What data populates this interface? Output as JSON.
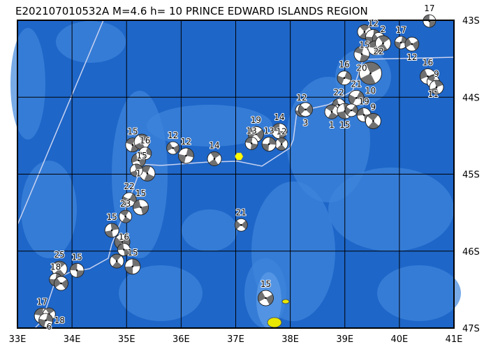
{
  "title": "E202107010532A  M=4.6  h= 10  PRINCE EDWARD ISLANDS REGION",
  "extent": {
    "lon": [
      33,
      41
    ],
    "lat": [
      -47,
      -43
    ]
  },
  "lon_ticks": [
    {
      "v": 33,
      "label": "33E"
    },
    {
      "v": 34,
      "label": "34E"
    },
    {
      "v": 35,
      "label": "35E"
    },
    {
      "v": 36,
      "label": "36E"
    },
    {
      "v": 37,
      "label": "37E"
    },
    {
      "v": 38,
      "label": "38E"
    },
    {
      "v": 39,
      "label": "39E"
    },
    {
      "v": 40,
      "label": "40E"
    },
    {
      "v": 41,
      "label": "41E"
    }
  ],
  "lat_ticks": [
    {
      "v": -43,
      "label": "43S"
    },
    {
      "v": -44,
      "label": "44S"
    },
    {
      "v": -45,
      "label": "45S"
    },
    {
      "v": -46,
      "label": "46S"
    },
    {
      "v": -47,
      "label": "47S"
    }
  ],
  "colors": {
    "ocean": "#1e66c8",
    "shallow": "#3f86dc",
    "ridge": "#c8d2f0",
    "land": "#e8e800",
    "beachball_dark": "#707070",
    "epicenter": "#ffff00",
    "grid": "#000000"
  },
  "epicenter": {
    "lon": 37.06,
    "lat": -44.77
  },
  "events": [
    {
      "lon": 40.55,
      "lat": -43.01,
      "depth": "17"
    },
    {
      "lon": 39.36,
      "lat": -43.15,
      "depth": "15"
    },
    {
      "lon": 39.52,
      "lat": -43.22,
      "depth": "12"
    },
    {
      "lon": 39.62,
      "lat": -43.24,
      "depth": "22"
    },
    {
      "lon": 39.55,
      "lat": -43.36,
      "depth": ""
    },
    {
      "lon": 39.7,
      "lat": -43.3,
      "depth": "2"
    },
    {
      "lon": 40.03,
      "lat": -43.29,
      "depth": "17"
    },
    {
      "lon": 40.23,
      "lat": -43.31,
      "depth": "12"
    },
    {
      "lon": 39.31,
      "lat": -43.44,
      "depth": "20"
    },
    {
      "lon": 39.47,
      "lat": -43.69,
      "depth": "10",
      "big": true
    },
    {
      "lon": 38.99,
      "lat": -43.75,
      "depth": "16"
    },
    {
      "lon": 40.52,
      "lat": -43.73,
      "depth": "16"
    },
    {
      "lon": 40.62,
      "lat": -43.8,
      "depth": "11"
    },
    {
      "lon": 40.68,
      "lat": -43.87,
      "depth": "9"
    },
    {
      "lon": 39.21,
      "lat": -44.01,
      "depth": "21"
    },
    {
      "lon": 38.89,
      "lat": -44.1,
      "depth": "22"
    },
    {
      "lon": 38.76,
      "lat": -44.19,
      "depth": "1"
    },
    {
      "lon": 39.0,
      "lat": -44.18,
      "depth": "15"
    },
    {
      "lon": 39.12,
      "lat": -44.17,
      "depth": ""
    },
    {
      "lon": 39.35,
      "lat": -44.23,
      "depth": "19"
    },
    {
      "lon": 39.52,
      "lat": -44.31,
      "depth": "9"
    },
    {
      "lon": 38.21,
      "lat": -44.17,
      "depth": "12"
    },
    {
      "lon": 38.28,
      "lat": -44.16,
      "depth": "3"
    },
    {
      "lon": 37.8,
      "lat": -44.44,
      "depth": "14"
    },
    {
      "lon": 37.84,
      "lat": -44.61,
      "depth": "12"
    },
    {
      "lon": 37.61,
      "lat": -44.61,
      "depth": "13"
    },
    {
      "lon": 37.37,
      "lat": -44.48,
      "depth": "19"
    },
    {
      "lon": 37.29,
      "lat": -44.6,
      "depth": "13"
    },
    {
      "lon": 36.61,
      "lat": -44.8,
      "depth": "14"
    },
    {
      "lon": 36.09,
      "lat": -44.76,
      "depth": "12"
    },
    {
      "lon": 35.85,
      "lat": -44.66,
      "depth": "12"
    },
    {
      "lon": 35.11,
      "lat": -44.62,
      "depth": "15"
    },
    {
      "lon": 35.28,
      "lat": -44.58,
      "depth": "15"
    },
    {
      "lon": 35.34,
      "lat": -44.73,
      "depth": "16"
    },
    {
      "lon": 35.22,
      "lat": -44.82,
      "depth": "1"
    },
    {
      "lon": 35.38,
      "lat": -44.99,
      "depth": ""
    },
    {
      "lon": 35.18,
      "lat": -44.95,
      "depth": ""
    },
    {
      "lon": 35.05,
      "lat": -45.33,
      "depth": "22"
    },
    {
      "lon": 35.26,
      "lat": -45.43,
      "depth": "15"
    },
    {
      "lon": 34.98,
      "lat": -45.55,
      "depth": "23"
    },
    {
      "lon": 34.73,
      "lat": -45.73,
      "depth": "15"
    },
    {
      "lon": 34.92,
      "lat": -45.88,
      "depth": ""
    },
    {
      "lon": 34.95,
      "lat": -45.98,
      "depth": "16"
    },
    {
      "lon": 34.82,
      "lat": -46.13,
      "depth": ""
    },
    {
      "lon": 35.11,
      "lat": -46.2,
      "depth": "15"
    },
    {
      "lon": 37.1,
      "lat": -45.66,
      "depth": "21"
    },
    {
      "lon": 34.09,
      "lat": -46.25,
      "depth": "15"
    },
    {
      "lon": 33.77,
      "lat": -46.23,
      "depth": "25"
    },
    {
      "lon": 33.7,
      "lat": -46.37,
      "depth": "18"
    },
    {
      "lon": 33.8,
      "lat": -46.42,
      "depth": ""
    },
    {
      "lon": 33.45,
      "lat": -46.84,
      "depth": "17"
    },
    {
      "lon": 33.58,
      "lat": -46.82,
      "depth": "6"
    },
    {
      "lon": 33.52,
      "lat": -46.9,
      "depth": "18"
    },
    {
      "lon": 37.55,
      "lat": -46.61,
      "depth": "15"
    }
  ]
}
